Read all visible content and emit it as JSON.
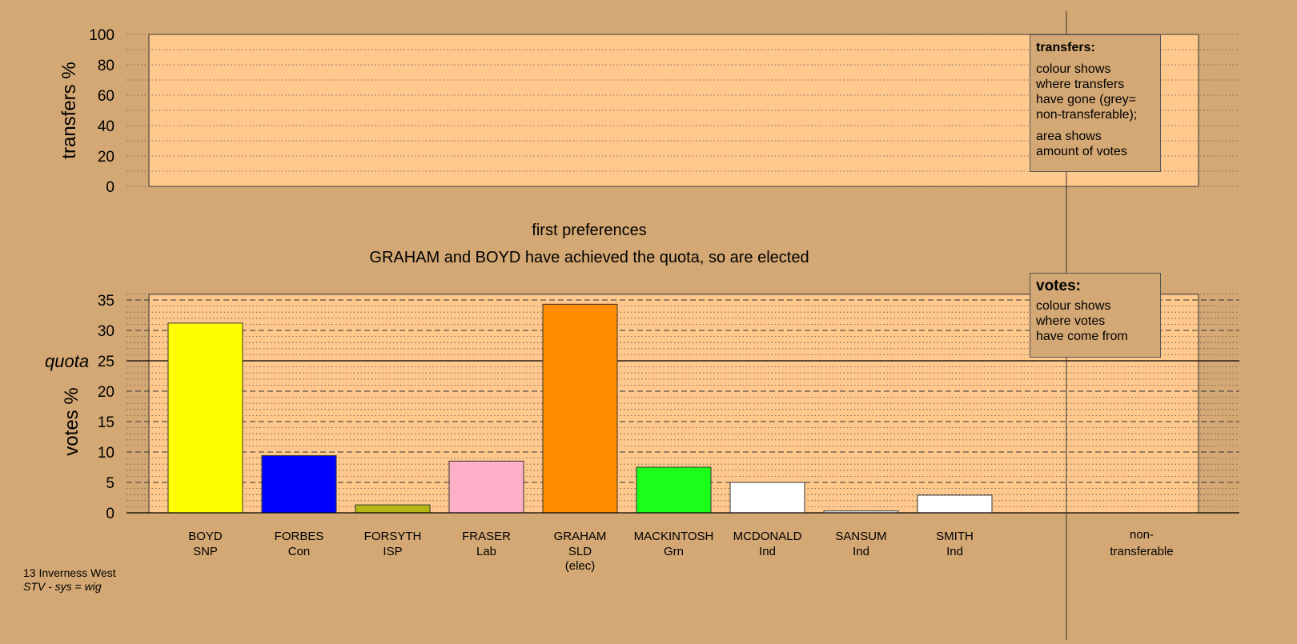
{
  "chart_data": [
    {
      "type": "area",
      "ylabel": "transfers %",
      "ylim": [
        0,
        100
      ],
      "yticks": [
        0,
        20,
        40,
        60,
        80,
        100
      ],
      "values": [],
      "legend": {
        "placement": "top-right",
        "title": "transfers:",
        "lines_1": [
          "colour shows",
          "where transfers",
          "have gone (grey=",
          "non-transferable);"
        ],
        "lines_2": [
          "area shows",
          "amount of votes"
        ]
      }
    },
    {
      "type": "bar",
      "title": "first preferences",
      "subtitle": "GRAHAM and BOYD have achieved the quota, so are elected",
      "ylabel": "votes %",
      "ylim": [
        0,
        36
      ],
      "yticks": [
        0,
        5,
        10,
        15,
        20,
        25,
        30,
        35
      ],
      "quota": {
        "label": "quota",
        "value": 25
      },
      "categories": [
        {
          "name": "BOYD",
          "party": "SNP",
          "note": "",
          "value": 31.2,
          "color": "#ffff00"
        },
        {
          "name": "FORBES",
          "party": "Con",
          "note": "",
          "value": 9.4,
          "color": "#0000ff"
        },
        {
          "name": "FORSYTH",
          "party": "ISP",
          "note": "",
          "value": 1.3,
          "color": "#b5b814"
        },
        {
          "name": "FRASER",
          "party": "Lab",
          "note": "",
          "value": 8.5,
          "color": "#ffb0c8"
        },
        {
          "name": "GRAHAM",
          "party": "SLD",
          "note": "(elec)",
          "value": 34.3,
          "color": "#ff8c00"
        },
        {
          "name": "MACKINTOSH",
          "party": "Grn",
          "note": "",
          "value": 7.5,
          "color": "#1aff1a"
        },
        {
          "name": "MCDONALD",
          "party": "Ind",
          "note": "",
          "value": 5.0,
          "color": "#ffffff"
        },
        {
          "name": "SANSUM",
          "party": "Ind",
          "note": "",
          "value": 0.3,
          "color": "#ffffff"
        },
        {
          "name": "SMITH",
          "party": "Ind",
          "note": "",
          "value": 2.9,
          "color": "#ffffff"
        }
      ],
      "non_transferable": {
        "label_1": "non-",
        "label_2": "transferable",
        "value": 0
      },
      "legend": {
        "placement": "top-right",
        "title": "votes:",
        "lines": [
          "colour shows",
          "where votes",
          "have come from"
        ]
      }
    }
  ],
  "footer": {
    "region": "13 Inverness West",
    "system": "STV - sys = wig"
  },
  "colors": {
    "background": "#d4a874",
    "plot_fill": "#ffc88c",
    "grid": "#555555"
  }
}
